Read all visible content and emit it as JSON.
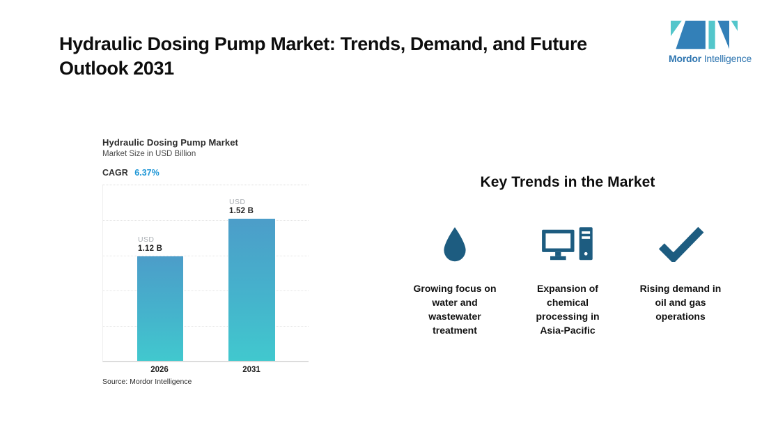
{
  "page": {
    "title": "Hydraulic Dosing Pump Market: Trends, Demand, and Future Outlook 2031"
  },
  "logo": {
    "brand_bold": "Mordor",
    "brand_regular": "Intelligence",
    "blue": "#3380b8",
    "teal": "#53c6cb",
    "text_color": "#2e75b0"
  },
  "chart": {
    "title": "Hydraulic Dosing Pump Market",
    "subtitle": "Market Size in USD Billion",
    "cagr_label": "CAGR",
    "cagr_value": "6.37%",
    "source": "Source: Mordor Intelligence",
    "accent_blue": "#1e96d6",
    "bar_gradient_top": "#4c9dc9",
    "bar_gradient_bottom": "#41c8ce"
  },
  "chart_data": {
    "type": "bar",
    "title": "Hydraulic Dosing Pump Market",
    "subtitle": "Market Size in USD Billion",
    "cagr_percent": 6.37,
    "categories": [
      "2026",
      "2031"
    ],
    "values": [
      1.12,
      1.52
    ],
    "value_labels": [
      {
        "currency": "USD",
        "value": "1.12 B"
      },
      {
        "currency": "USD",
        "value": "1.52 B"
      }
    ],
    "xlabel": "",
    "ylabel": "Market Size in USD Billion",
    "ylim": [
      0,
      1.88
    ],
    "grid": "horizontal-dotted",
    "legend": "none",
    "unit": "USD Billion"
  },
  "trends": {
    "heading": "Key Trends in the Market",
    "icon_color": "#1d5c80",
    "items": [
      {
        "icon": "water-drop-icon",
        "label": "Growing focus on water and wastewater treatment"
      },
      {
        "icon": "desktop-computer-icon",
        "label": "Expansion of chemical processing in Asia-Pacific"
      },
      {
        "icon": "checkmark-icon",
        "label": "Rising demand in oil and gas operations"
      }
    ]
  }
}
